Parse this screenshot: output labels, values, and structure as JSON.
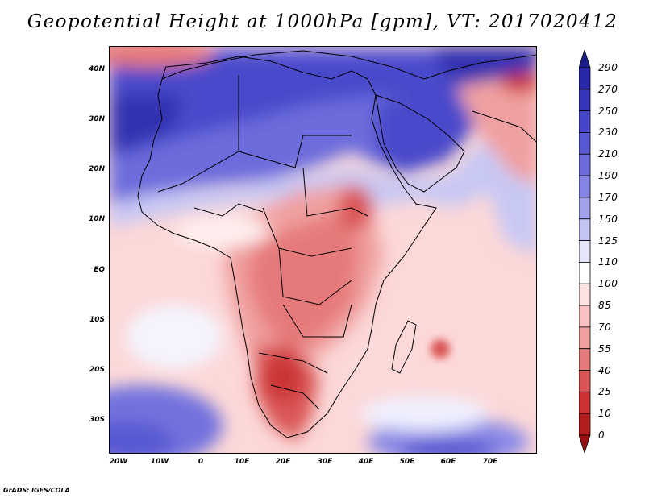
{
  "title": "Geopotential Height at 1000hPa [gpm], VT: 2017020412",
  "credit": "GrADS: IGES/COLA",
  "lat_labels": [
    "40N",
    "30N",
    "20N",
    "10N",
    "EQ",
    "10S",
    "20S",
    "30S"
  ],
  "lon_labels": [
    "20W",
    "10W",
    "0",
    "10E",
    "20E",
    "30E",
    "40E",
    "50E",
    "60E",
    "70E"
  ],
  "colorbar": {
    "labels": [
      "290",
      "270",
      "250",
      "230",
      "210",
      "190",
      "170",
      "150",
      "125",
      "110",
      "100",
      "85",
      "70",
      "55",
      "40",
      "25",
      "10",
      "0"
    ],
    "colors": [
      "#1c1c8c",
      "#2828a8",
      "#3636bb",
      "#4646c8",
      "#5858d2",
      "#6c6cdc",
      "#8484e4",
      "#a2a2ec",
      "#c4c4f3",
      "#e6e6fb",
      "#ffffff",
      "#fde2e2",
      "#f8c2c2",
      "#f0a0a0",
      "#e67a7a",
      "#da5656",
      "#cc3434",
      "#b21e1e",
      "#961010"
    ]
  }
}
